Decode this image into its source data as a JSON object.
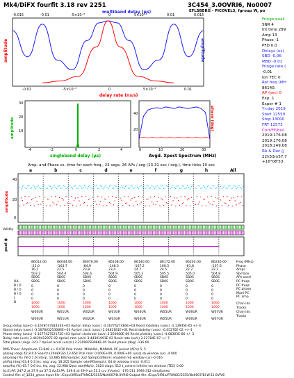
{
  "header": {
    "left_title": "Mk4/DiFX fourfit 3.18 rev 2251",
    "right_title": "3C454_3.0OVRI6, No0007",
    "subtitle": "EFLSBERG - PICOVEL3, fgroup W, po"
  },
  "colors": {
    "blue": "#1a1aff",
    "red": "#ff0000",
    "green": "#00b000",
    "cyan": "#00c8e6",
    "magenta": "#cc00cc"
  },
  "top_plot": {
    "top_axis_label": "multiband delay (μs)",
    "top_ticks": [
      "-0.015",
      "-0.01",
      "-5×10⁻³",
      "0",
      "5×10⁻³",
      "0.01",
      "0.015"
    ],
    "bottom_axis_label": "delay rate (ns/s)",
    "bottom_ticks": [
      "-0.01",
      "-5×10⁻³",
      "0",
      "5×10⁻³",
      "0.01"
    ],
    "ylabel_left": "amplitude",
    "ylabel_right": "amplitude"
  },
  "mid_left_plot": {
    "xlabel": "singleband delay (μs)",
    "ylabel": "amplitude",
    "xticks": [
      "-4",
      "-2",
      "0",
      "2",
      "4"
    ],
    "yticks": [
      "10",
      "20",
      "30"
    ]
  },
  "mid_right_plot": {
    "xlabel": "Avgd. Xpect Spectrum (MHz)",
    "xticks": [
      "0",
      "10",
      "20",
      "30"
    ],
    "yticks_left": [
      "20",
      "40"
    ],
    "ylabel_right": "phase (deg)"
  },
  "side_panel": {
    "lines": [
      "Fringe quali",
      "SNR  4",
      "Int time  299",
      "Amp  13",
      "Phase  -1",
      "PFD  0.0",
      "Delays (us)",
      "SBD  -0.06",
      "MBD  -0.01",
      "Fringe rate (",
      "-0.01",
      "Ion TEC  0",
      "Ref freq (MH",
      "86140.",
      "AP (sec)  0",
      "Exp.  1",
      "Exper #  1",
      "Yr:day 2019",
      "Start  12550",
      "Stop  13000",
      "FRT  12573",
      "Corr/FF/buil",
      "2019:176:08",
      "2019:176:08",
      "2018:249:08",
      "RA & Dec (J",
      "22h53m57.7",
      "+16°08'53"
    ]
  },
  "channel_plot": {
    "title": "Amp. and Phase vs. time for each freq., 23 segs, 26 APs / seg (13.31 sec / seg.), time ticks 10 sec",
    "channels": [
      "a",
      "b",
      "c",
      "d",
      "e",
      "f",
      "g",
      "h"
    ],
    "all_label": "All",
    "yticks": [
      "40",
      "20",
      "0"
    ],
    "ylabel": "amplitude",
    "validity_label": "Validity",
    "pcal_label": "pcal ϕ"
  },
  "freq_table": {
    "columns": [
      [
        "86012.00",
        "-23.0",
        "16.2",
        "503.2",
        "SB0S",
        "SB0S"
      ],
      [
        "86044.00",
        "-163.7",
        "22.5",
        "504.4",
        "SB0S",
        "SB0S"
      ],
      [
        "86076.00",
        "-84.9",
        "23.8",
        "504.6",
        "SB0S",
        "SB0S"
      ],
      [
        "86108.00",
        "-148.3",
        "23.4",
        "504.9",
        "SB0S",
        "SB0S"
      ],
      [
        "86140.00",
        "-167.2",
        "24.7",
        "505.2",
        "SB0S",
        "SB0S"
      ],
      [
        "86172.00",
        "160.5",
        "24.5",
        "505.5",
        "SB0S",
        "SB0S"
      ],
      [
        "86204.00",
        "-61.8",
        "22.2",
        "505.0",
        "SB0S",
        "SB0S"
      ],
      [
        "86236.00",
        "-107.6",
        "22.2",
        "504.8",
        "SB0S",
        "SB0S"
      ]
    ],
    "labels": [
      "Freq (MHz)",
      "Phase",
      "Ampl.",
      "Sbd box",
      "APs used",
      "PC freqs",
      "PC freqs",
      "PC phase",
      "Manl PC",
      "PC amp"
    ],
    "bu_rows": [
      "U/L",
      "B / 0",
      "B / 0",
      "B / 0",
      "I",
      "B"
    ],
    "pcal_vals": [
      "0",
      "0",
      "0",
      "0",
      "1000",
      "1000"
    ],
    "chan_ids": [
      "W00UR",
      "W01UR",
      "W02UR",
      "W03UR",
      "W04UR",
      "W05UR",
      "W06UR",
      "W07UR"
    ],
    "chan_ids2": [
      "W00UR",
      "W01UR",
      "W02UR",
      "W03UR",
      "W04UR",
      "W05UR",
      "W06UR",
      "W07UR"
    ],
    "right_labels": [
      "Chan ids",
      "Tracks",
      "Chan ids",
      "Tracks"
    ]
  },
  "footer": {
    "lines": [
      "Group delay (usec)    -3.167874781424E+03    Apriori delay (usec)    -3.1677427480E+03    Resid mbdelay (usec)    -1.13935E-05  +/-  4",
      "Sband delay (usec)    -3.167803253086E+03    Apriori clock (usec)    2.0482181E+01    Resid sbdelay (usec)    -6.05270E-02  +/-  4",
      "Phase delay (usec)    -3.167742752172E+03    Apriori clockrate (us/s)    3.3E0000E-06    Resid phdelay (usec)    -4.08303E-06  +/-  3",
      "Delay rate (us/s)    3.443941297E-02    Apriori rate (us/s)    3.44391091E-02    Resid rate (us/s)    2.22784E-07  +/-  7",
      "Total phase (deg)    -241.7    Apriori accel (us/s/s)    2.22099783986E-05    Resid phase (deg)    -136.60",
      "RMS   Theor.   Amplitude   13.848 +/- 0.030   Pcal mode: MANUAL, MANUAL   PC period (AP's) 5, 5",
      "ph/seg (deg)   42.8   0.6   Search (2048X32)   13.654   Pcal rate: 0.000E+00, 0.000E+00 (us/s)   sb window (us)  -4.000",
      "amp/seg (%)   78.0   1.0   Interp.   13.685   Bits/sample: 2x2   SampCntNorm: enabled   mb window (us)  -0.016",
      "ph/frq (deg)   63.8   0.3   Inc. seg. avg.   18.205   Sample rate(MSamp/s): 64   dr window (ns/s)  -0.011",
      "amp/frq (%)   65.7   0.6   Inc. frq. avg.   22.988   Data rate(Mb/s): 1024   nlags: 512  t_cohere infinite  ion window (TEC)  0.00",
      "Az,El,PA: 247.2 at 37.9  pa 37.5    Az,El,PA: 249.4 at 49.9  pa 51.2    u,v (fr/asec)  -176.511  1949.312        simultaneo",
      "Control file: cf_1234_gmva   Input file: /Exps/3f91a/FRINGE/5555/No0007/B.0VRI6   Output file: /Exps/3f91a/FRINGE/5555/No0007/BI.W.31.0VRI6"
    ]
  },
  "chart_data": [
    {
      "type": "line",
      "title": "",
      "xlabel": "multiband delay (μs)",
      "ylabel": "amplitude",
      "xlim": [
        -0.016,
        0.016
      ],
      "series": [
        {
          "name": "",
          "x": [
            -0.016,
            -0.0135,
            -0.011,
            -0.0085,
            -0.006,
            -0.0035,
            -0.0015,
            0,
            0.0015,
            0.0035,
            0.006,
            0.0085,
            0.011,
            0.0135,
            0.016
          ],
          "values": [
            0.85,
            0.45,
            0.95,
            0.4,
            0.25,
            0.7,
            0.97,
            1.0,
            0.97,
            0.7,
            0.25,
            0.4,
            0.95,
            0.45,
            0.85
          ]
        },
        {
          "name": "",
          "x": [
            -0.011,
            -0.008,
            -0.005,
            -0.002,
            0,
            0.002,
            0.005,
            0.008,
            0.011
          ],
          "values": [
            0.05,
            0.08,
            0.15,
            0.6,
            1.0,
            0.6,
            0.15,
            0.08,
            0.05
          ]
        }
      ]
    },
    {
      "type": "bar",
      "title": "",
      "xlabel": "singleband delay (μs)",
      "ylabel": "amplitude",
      "xlim": [
        -4,
        4
      ],
      "ylim": [
        0,
        33
      ],
      "x": [
        -0.05,
        0,
        0.05
      ],
      "values": [
        2,
        31,
        2
      ]
    },
    {
      "type": "line",
      "title": "",
      "xlabel": "Avgd. Xpect Spectrum (MHz)",
      "ylabel": "",
      "xlim": [
        0,
        32
      ],
      "series": [
        {
          "name": "",
          "x": [
            0,
            2,
            4,
            6,
            8,
            10,
            12,
            14,
            16,
            18,
            20,
            22,
            24,
            26,
            28,
            30,
            32
          ],
          "values": [
            10,
            40,
            48,
            50,
            51,
            50,
            52,
            51,
            50,
            52,
            51,
            50,
            51,
            52,
            50,
            45,
            10
          ]
        },
        {
          "name": "",
          "x": [
            0,
            2,
            4,
            6,
            8,
            10,
            12,
            14,
            16,
            18,
            20,
            22,
            24,
            26,
            28,
            30,
            32
          ],
          "values": [
            12,
            13,
            12,
            13,
            12,
            13,
            12,
            13,
            12,
            13,
            12,
            13,
            12,
            13,
            12,
            13,
            12
          ]
        }
      ]
    },
    {
      "type": "scatter",
      "title": "Amp. and Phase vs. time for each freq., 23 segs, 26 APs / seg (13.31 sec / seg.), time ticks 10 sec",
      "categories": [
        "a",
        "b",
        "c",
        "d",
        "e",
        "f",
        "g",
        "h",
        "All"
      ],
      "ylabel": "amplitude",
      "ylim": [
        0,
        45
      ],
      "series": [
        {
          "name": "",
          "values": [
            33,
            33,
            33,
            33,
            33,
            33,
            33,
            33,
            33
          ]
        },
        {
          "name": "",
          "values": [
            20,
            20,
            20,
            20,
            20,
            20,
            20,
            20,
            20
          ]
        }
      ]
    }
  ]
}
